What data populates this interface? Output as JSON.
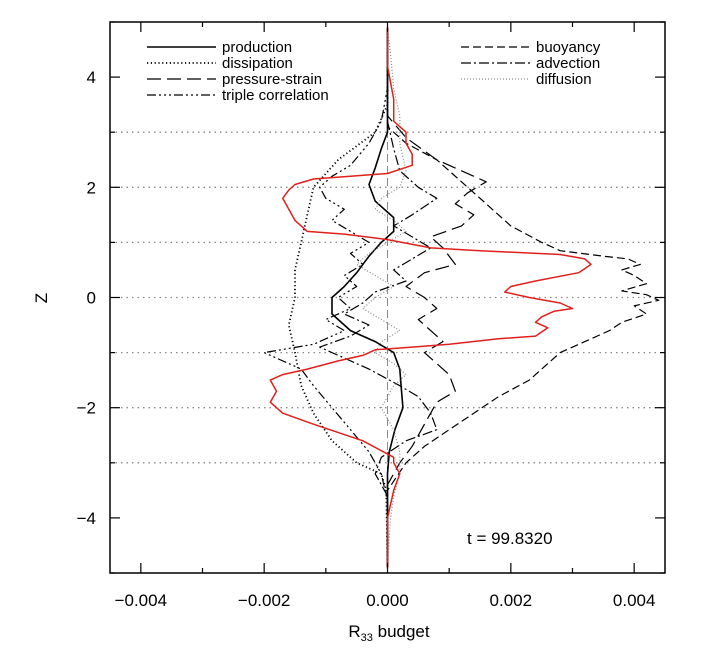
{
  "chart_data": {
    "type": "line",
    "xlabel": "R",
    "xlabel_sub": "33",
    "xlabel_suffix": " budget",
    "ylabel": "Z",
    "xlim": [
      -0.0045,
      0.0045
    ],
    "ylim": [
      -5,
      5
    ],
    "xticks": [
      {
        "v": -0.004,
        "label": "−0.004"
      },
      {
        "v": -0.002,
        "label": "−0.002"
      },
      {
        "v": 0.0,
        "label": "0.000"
      },
      {
        "v": 0.002,
        "label": "0.002"
      },
      {
        "v": 0.004,
        "label": "0.004"
      }
    ],
    "yticks": [
      {
        "v": -4,
        "label": "−4"
      },
      {
        "v": -2,
        "label": "−2"
      },
      {
        "v": 0,
        "label": "0"
      },
      {
        "v": 2,
        "label": "2"
      },
      {
        "v": 4,
        "label": "4"
      }
    ],
    "hlines": [
      3,
      2,
      1,
      0,
      -1,
      -2,
      -3
    ],
    "annotation": "t = 99.8320",
    "colors": {
      "ink": "#000000",
      "red": "#e0201c",
      "gray": "#8a8a8a"
    },
    "series": [
      {
        "name": "production",
        "dash": "",
        "color": "#000000",
        "width": 1.6,
        "points": [
          [
            0.0,
            -4.9
          ],
          [
            0.0,
            -4.0
          ],
          [
            0.0,
            -3.6
          ],
          [
            0.0,
            -3.2
          ],
          [
            3e-05,
            -2.8
          ],
          [
            0.00012,
            -2.4
          ],
          [
            0.00025,
            -2.0
          ],
          [
            0.00022,
            -1.6
          ],
          [
            0.0002,
            -1.3
          ],
          [
            0.0001,
            -1.0
          ],
          [
            -0.0002,
            -0.8
          ],
          [
            -0.0006,
            -0.6
          ],
          [
            -0.0009,
            -0.3
          ],
          [
            -0.0009,
            0.0
          ],
          [
            -0.0007,
            0.2
          ],
          [
            -0.0005,
            0.45
          ],
          [
            -0.0003,
            0.75
          ],
          [
            -0.0001,
            1.0
          ],
          [
            0.0001,
            1.2
          ],
          [
            0.0001,
            1.45
          ],
          [
            -0.0002,
            1.75
          ],
          [
            -0.0003,
            2.05
          ],
          [
            -0.0002,
            2.35
          ],
          [
            -0.0001,
            2.7
          ],
          [
            0.0,
            3.0
          ],
          [
            0.0,
            3.6
          ],
          [
            0.0,
            4.9
          ]
        ]
      },
      {
        "name": "dissipation",
        "dash": "1.2,2.6",
        "color": "#000000",
        "width": 1.8,
        "points": [
          [
            0.0,
            -4.9
          ],
          [
            -2e-05,
            -3.5
          ],
          [
            -0.0001,
            -3.2
          ],
          [
            -0.0005,
            -3.0
          ],
          [
            -0.0009,
            -2.6
          ],
          [
            -0.0012,
            -2.1
          ],
          [
            -0.0014,
            -1.6
          ],
          [
            -0.0015,
            -1.0
          ],
          [
            -0.0016,
            -0.5
          ],
          [
            -0.0015,
            0.0
          ],
          [
            -0.0015,
            0.5
          ],
          [
            -0.0014,
            1.0
          ],
          [
            -0.0013,
            1.5
          ],
          [
            -0.0012,
            2.0
          ],
          [
            -0.0008,
            2.5
          ],
          [
            -0.0002,
            3.0
          ],
          [
            0.0,
            3.5
          ],
          [
            0.0,
            4.9
          ]
        ]
      },
      {
        "name": "pressure-strain",
        "dash": "14,6",
        "color": "#000000",
        "width": 1.2,
        "points": [
          [
            0.0,
            -4.9
          ],
          [
            0.0,
            -3.4
          ],
          [
            0.0002,
            -3.0
          ],
          [
            0.0004,
            -2.7
          ],
          [
            0.0006,
            -2.3
          ],
          [
            0.0008,
            -1.9
          ],
          [
            0.0011,
            -1.7
          ],
          [
            0.001,
            -1.4
          ],
          [
            0.0008,
            -1.2
          ],
          [
            0.0006,
            -1.0
          ],
          [
            0.0009,
            -0.8
          ],
          [
            0.0007,
            -0.6
          ],
          [
            0.0005,
            -0.4
          ],
          [
            0.0008,
            -0.2
          ],
          [
            0.0006,
            0.0
          ],
          [
            0.0003,
            0.2
          ],
          [
            0.0006,
            0.45
          ],
          [
            0.0011,
            0.6
          ],
          [
            0.0009,
            0.9
          ],
          [
            0.0007,
            1.1
          ],
          [
            0.0012,
            1.3
          ],
          [
            0.0014,
            1.5
          ],
          [
            0.0011,
            1.7
          ],
          [
            0.0013,
            1.9
          ],
          [
            0.0016,
            2.1
          ],
          [
            0.0012,
            2.3
          ],
          [
            0.0008,
            2.5
          ],
          [
            0.0003,
            2.9
          ],
          [
            0.0,
            3.3
          ],
          [
            0.0,
            4.9
          ]
        ]
      },
      {
        "name": "triple correlation",
        "dash": "9,3,2,3,2,3,2,3",
        "color": "#000000",
        "width": 1.2,
        "points": [
          [
            0.0,
            -4.9
          ],
          [
            0.0,
            -3.7
          ],
          [
            -0.0001,
            -3.2
          ],
          [
            -0.0003,
            -2.8
          ],
          [
            -0.0006,
            -2.4
          ],
          [
            -0.0009,
            -2.0
          ],
          [
            -0.0012,
            -1.6
          ],
          [
            -0.0014,
            -1.3
          ],
          [
            -0.0018,
            -1.1
          ],
          [
            -0.002,
            -1.0
          ],
          [
            -0.0012,
            -0.85
          ],
          [
            -0.0007,
            -0.6
          ],
          [
            -0.001,
            -0.4
          ],
          [
            -0.0006,
            -0.2
          ],
          [
            -0.0008,
            0.0
          ],
          [
            -0.0005,
            0.2
          ],
          [
            -0.0007,
            0.4
          ],
          [
            -0.0004,
            0.6
          ],
          [
            -0.0006,
            0.8
          ],
          [
            -0.0003,
            1.0
          ],
          [
            -0.0006,
            1.2
          ],
          [
            -0.0009,
            1.4
          ],
          [
            -0.0007,
            1.6
          ],
          [
            -0.001,
            1.8
          ],
          [
            -0.0011,
            2.0
          ],
          [
            -0.0009,
            2.2
          ],
          [
            -0.0006,
            2.4
          ],
          [
            -0.0003,
            2.8
          ],
          [
            -0.0001,
            3.2
          ],
          [
            0.0,
            3.8
          ],
          [
            0.0,
            4.9
          ]
        ]
      },
      {
        "name": "buoyancy",
        "dash": "8,4",
        "color": "#000000",
        "width": 1.2,
        "points": [
          [
            0.0,
            -4.9
          ],
          [
            0.0,
            -3.5
          ],
          [
            0.0003,
            -3.0
          ],
          [
            0.0006,
            -2.7
          ],
          [
            0.001,
            -2.4
          ],
          [
            0.0014,
            -2.1
          ],
          [
            0.0018,
            -1.8
          ],
          [
            0.0023,
            -1.5
          ],
          [
            0.0026,
            -1.2
          ],
          [
            0.0028,
            -1.0
          ],
          [
            0.0032,
            -0.8
          ],
          [
            0.0036,
            -0.6
          ],
          [
            0.0038,
            -0.45
          ],
          [
            0.0042,
            -0.3
          ],
          [
            0.004,
            -0.15
          ],
          [
            0.0044,
            -0.05
          ],
          [
            0.0042,
            0.05
          ],
          [
            0.0038,
            0.12
          ],
          [
            0.0042,
            0.25
          ],
          [
            0.004,
            0.4
          ],
          [
            0.0038,
            0.5
          ],
          [
            0.0041,
            0.6
          ],
          [
            0.0039,
            0.7
          ],
          [
            0.0035,
            0.75
          ],
          [
            0.0028,
            0.85
          ],
          [
            0.0025,
            1.0
          ],
          [
            0.002,
            1.3
          ],
          [
            0.0016,
            1.7
          ],
          [
            0.0012,
            2.1
          ],
          [
            0.0008,
            2.5
          ],
          [
            0.0003,
            2.8
          ],
          [
            0.0,
            3.1
          ],
          [
            0.0,
            4.9
          ]
        ]
      },
      {
        "name": "advection",
        "dash": "10,3,2,3",
        "color": "#000000",
        "width": 1.2,
        "points": [
          [
            0.0,
            -4.9
          ],
          [
            0.0,
            -3.6
          ],
          [
            -0.0002,
            -3.2
          ],
          [
            -0.0001,
            -2.9
          ],
          [
            0.0003,
            -2.6
          ],
          [
            0.0008,
            -2.4
          ],
          [
            0.0007,
            -2.1
          ],
          [
            0.0005,
            -1.8
          ],
          [
            0.0002,
            -1.6
          ],
          [
            -0.0003,
            -1.3
          ],
          [
            -0.0007,
            -1.1
          ],
          [
            -0.0011,
            -0.9
          ],
          [
            -0.0006,
            -0.7
          ],
          [
            -0.0003,
            -0.5
          ],
          [
            -0.0007,
            -0.3
          ],
          [
            -0.0004,
            -0.1
          ],
          [
            -0.0002,
            0.1
          ],
          [
            0.0003,
            0.3
          ],
          [
            0.0001,
            0.5
          ],
          [
            0.0004,
            0.7
          ],
          [
            0.0007,
            0.9
          ],
          [
            0.0004,
            1.1
          ],
          [
            0.0001,
            1.3
          ],
          [
            0.0004,
            1.5
          ],
          [
            0.0008,
            1.8
          ],
          [
            0.0005,
            2.0
          ],
          [
            0.0002,
            2.3
          ],
          [
            0.0001,
            2.7
          ],
          [
            0.0,
            3.2
          ],
          [
            0.0,
            4.9
          ]
        ]
      },
      {
        "name": "diffusion",
        "dash": "1,2",
        "color": "#8a8a8a",
        "width": 1.2,
        "points": [
          [
            0.0,
            -4.9
          ],
          [
            5e-05,
            -4.0
          ],
          [
            0.0001,
            -3.6
          ],
          [
            0.0002,
            -3.2
          ],
          [
            0.0002,
            -2.8
          ],
          [
            0.0001,
            -2.4
          ],
          [
            -0.0001,
            -2.0
          ],
          [
            0.0001,
            -1.6
          ],
          [
            0.0003,
            -1.4
          ],
          [
            0.0001,
            -1.2
          ],
          [
            -0.0002,
            -1.0
          ],
          [
            -0.0001,
            -0.8
          ],
          [
            0.0002,
            -0.6
          ],
          [
            -0.0001,
            -0.4
          ],
          [
            -0.0004,
            -0.2
          ],
          [
            -0.0002,
            0.0
          ],
          [
            0.0001,
            0.2
          ],
          [
            -0.0002,
            0.4
          ],
          [
            -0.0005,
            0.6
          ],
          [
            -0.0003,
            0.8
          ],
          [
            0.0,
            1.0
          ],
          [
            0.0003,
            1.2
          ],
          [
            0.0001,
            1.4
          ],
          [
            -0.0002,
            1.6
          ],
          [
            -0.0001,
            1.8
          ],
          [
            0.0002,
            2.0
          ],
          [
            0.0003,
            2.3
          ],
          [
            0.0002,
            2.8
          ],
          [
            0.0002,
            3.3
          ],
          [
            0.0001,
            3.8
          ],
          [
            5e-05,
            4.4
          ],
          [
            0.0,
            4.9
          ]
        ]
      },
      {
        "name": "",
        "dash": "",
        "color": "#e0201c",
        "width": 1.5,
        "points": [
          [
            0.0,
            -4.9
          ],
          [
            0.0,
            -4.0
          ],
          [
            0.0001,
            -3.5
          ],
          [
            0.0002,
            -3.2
          ],
          [
            0.0001,
            -3.0
          ],
          [
            0.0001,
            -2.9
          ],
          [
            -0.0004,
            -2.6
          ],
          [
            -0.0012,
            -2.3
          ],
          [
            -0.0017,
            -2.1
          ],
          [
            -0.0019,
            -1.9
          ],
          [
            -0.0018,
            -1.7
          ],
          [
            -0.0019,
            -1.5
          ],
          [
            -0.0017,
            -1.4
          ],
          [
            -0.0013,
            -1.3
          ],
          [
            -0.0008,
            -1.15
          ],
          [
            -0.0004,
            -1.05
          ],
          [
            -0.0002,
            -0.95
          ],
          [
            0.0004,
            -0.9
          ],
          [
            0.001,
            -0.85
          ],
          [
            0.0018,
            -0.75
          ],
          [
            0.0024,
            -0.7
          ],
          [
            0.0026,
            -0.55
          ],
          [
            0.0024,
            -0.45
          ],
          [
            0.0025,
            -0.35
          ],
          [
            0.0027,
            -0.25
          ],
          [
            0.003,
            -0.2
          ],
          [
            0.0028,
            -0.1
          ],
          [
            0.0023,
            0.0
          ],
          [
            0.0019,
            0.1
          ],
          [
            0.002,
            0.2
          ],
          [
            0.0024,
            0.3
          ],
          [
            0.0031,
            0.45
          ],
          [
            0.0033,
            0.6
          ],
          [
            0.0032,
            0.7
          ],
          [
            0.0028,
            0.78
          ],
          [
            0.0015,
            0.85
          ],
          [
            0.0007,
            0.9
          ],
          [
            0.0,
            1.05
          ],
          [
            -0.0007,
            1.15
          ],
          [
            -0.0013,
            1.2
          ],
          [
            -0.0015,
            1.4
          ],
          [
            -0.0016,
            1.6
          ],
          [
            -0.0017,
            1.8
          ],
          [
            -0.0016,
            1.95
          ],
          [
            -0.0015,
            2.05
          ],
          [
            -0.0012,
            2.15
          ],
          [
            -0.0006,
            2.2
          ],
          [
            0.0,
            2.25
          ],
          [
            0.0004,
            2.4
          ],
          [
            0.0004,
            2.6
          ],
          [
            0.0003,
            2.8
          ],
          [
            0.0003,
            3.0
          ],
          [
            0.0001,
            3.2
          ],
          [
            0.0001,
            3.6
          ],
          [
            0.0,
            4.2
          ],
          [
            0.0,
            4.9
          ]
        ]
      }
    ]
  }
}
